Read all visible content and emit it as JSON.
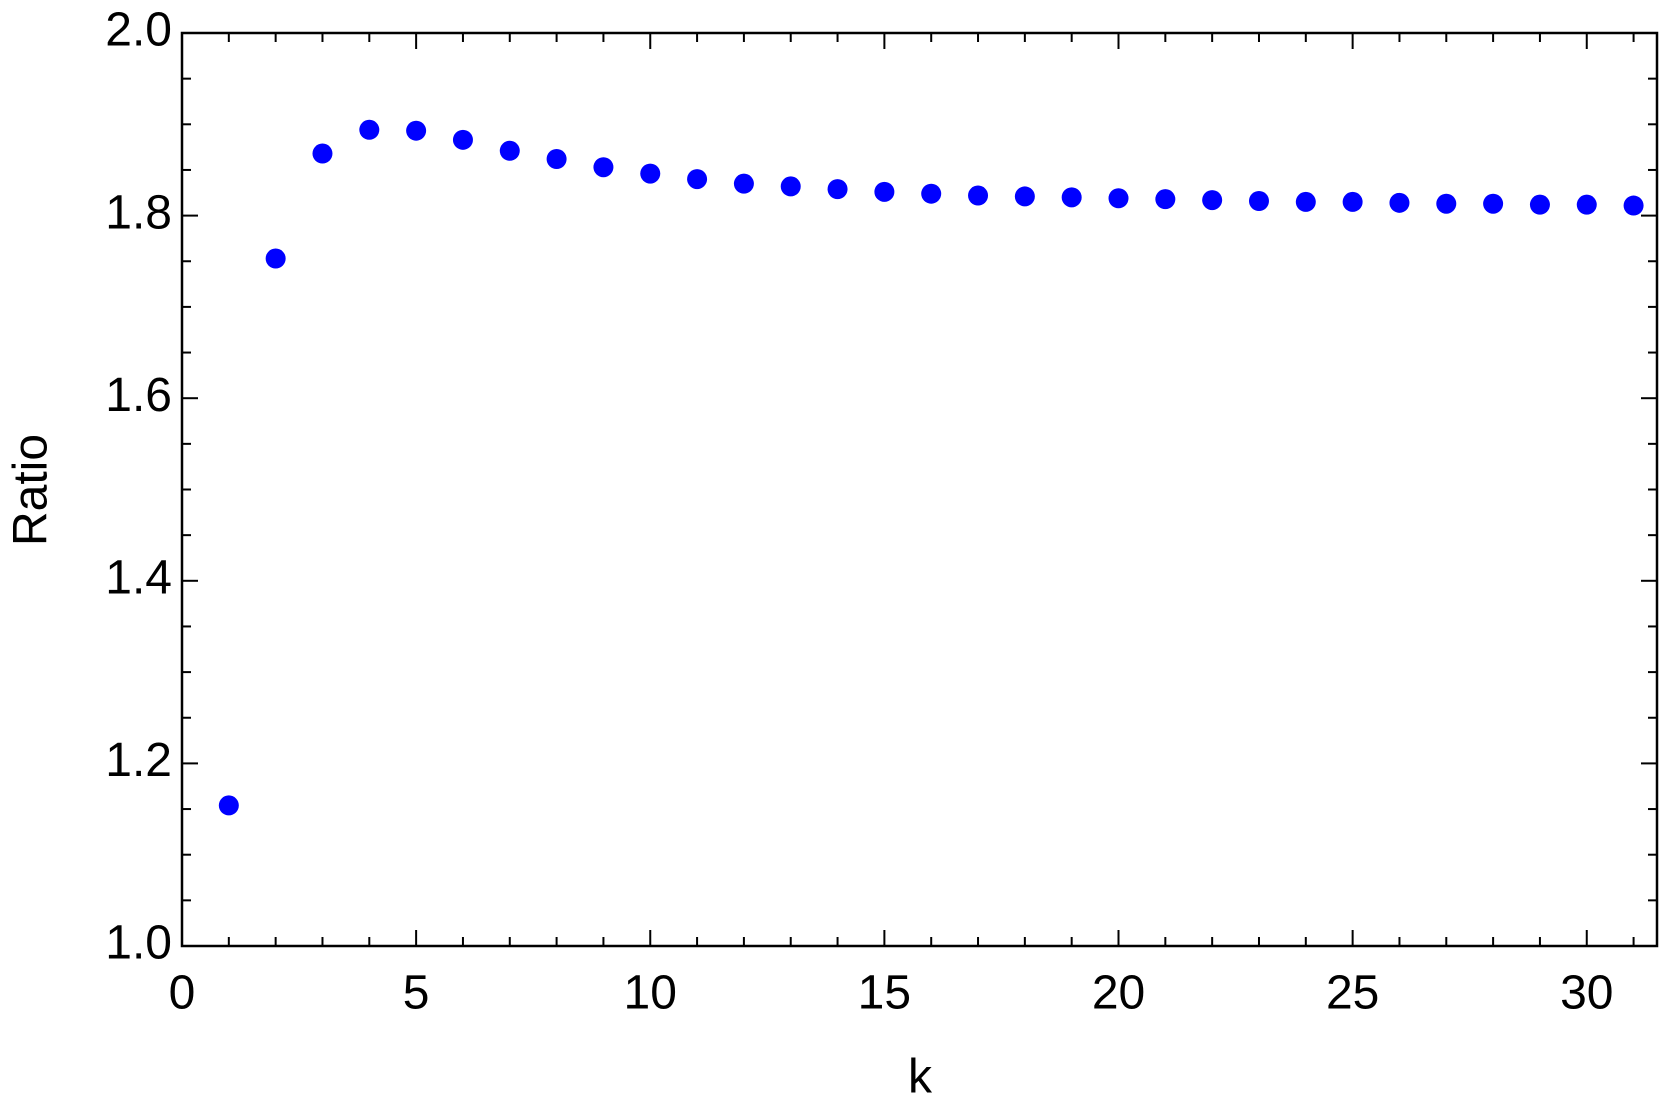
{
  "chart_data": {
    "type": "scatter",
    "x_label": "k",
    "y_label": "Ratio",
    "color": "#0000ff",
    "x": [
      1,
      2,
      3,
      4,
      5,
      6,
      7,
      8,
      9,
      10,
      11,
      12,
      13,
      14,
      15,
      16,
      17,
      18,
      19,
      20,
      21,
      22,
      23,
      24,
      25,
      26,
      27,
      28,
      29,
      30,
      31
    ],
    "values": [
      1.154,
      1.753,
      1.868,
      1.894,
      1.893,
      1.883,
      1.871,
      1.862,
      1.853,
      1.846,
      1.84,
      1.835,
      1.832,
      1.829,
      1.826,
      1.824,
      1.822,
      1.821,
      1.82,
      1.819,
      1.818,
      1.817,
      1.816,
      1.815,
      1.815,
      1.814,
      1.813,
      1.813,
      1.812,
      1.812,
      1.811
    ],
    "xlim": [
      0,
      31.5
    ],
    "ylim": [
      1.0,
      2.0
    ],
    "xticks": [
      0,
      5,
      10,
      15,
      20,
      25,
      30
    ],
    "yticks": [
      {
        "value": 1.0,
        "label": "1.0"
      },
      {
        "value": 1.2,
        "label": "1.2"
      },
      {
        "value": 1.4,
        "label": "1.4"
      },
      {
        "value": 1.6,
        "label": "1.6"
      },
      {
        "value": 1.8,
        "label": "1.8"
      },
      {
        "value": 2.0,
        "label": "2.0"
      }
    ],
    "grid": false
  }
}
